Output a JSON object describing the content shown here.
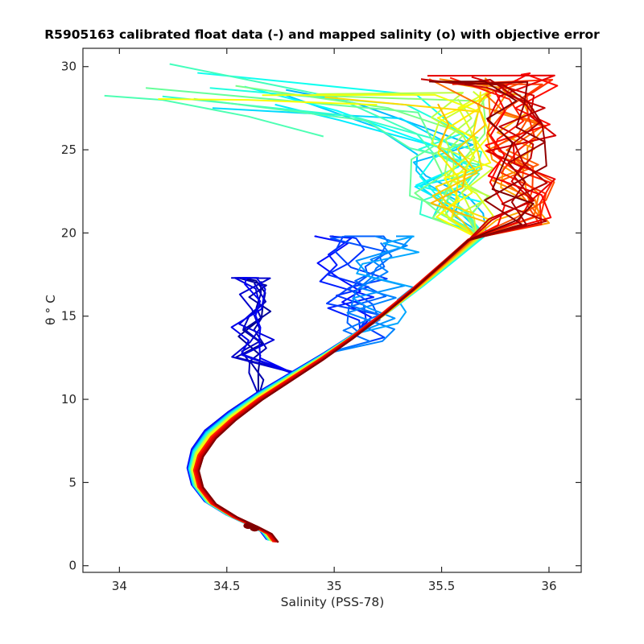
{
  "chart_data": {
    "type": "line",
    "title": "R5905163 calibrated float data (-) and mapped salinity (o) with objective error",
    "xlabel": "Salinity (PSS-78)",
    "ylabel": "θ ° C",
    "xlim": [
      33.83,
      36.15
    ],
    "ylim": [
      -0.4,
      31.1
    ],
    "xticks": [
      34,
      34.5,
      35,
      35.5,
      36
    ],
    "xtick_labels": [
      "34",
      "34.5",
      "35",
      "35.5",
      "36"
    ],
    "yticks": [
      0,
      5,
      10,
      15,
      20,
      25,
      30
    ],
    "ytick_labels": [
      "0",
      "5",
      "10",
      "15",
      "20",
      "25",
      "30"
    ],
    "grid": false,
    "legend": "none",
    "colormap": "jet (early profiles blue → late profiles dark red)",
    "colors": {
      "jet": [
        "#00008f",
        "#0000ff",
        "#0080ff",
        "#00ffff",
        "#80ff80",
        "#ffff00",
        "#ff8000",
        "#ff0000",
        "#800000"
      ],
      "axes": "#262626"
    },
    "profile_count": 60,
    "mean_deep_profile": {
      "salinity": [
        34.71,
        34.68,
        34.62,
        34.52,
        34.42,
        34.36,
        34.34,
        34.36,
        34.42,
        34.52,
        34.65,
        34.8,
        34.95,
        35.1,
        35.25,
        35.4,
        35.55,
        35.68
      ],
      "theta": [
        1.5,
        2.0,
        2.4,
        3.0,
        3.8,
        4.8,
        5.8,
        6.8,
        7.9,
        9.0,
        10.2,
        11.4,
        12.6,
        13.9,
        15.3,
        16.8,
        18.4,
        19.8
      ]
    },
    "series": [
      {
        "salinity": [
          34.7,
          34.67,
          34.62,
          34.53,
          34.42,
          34.36,
          34.34,
          34.37,
          34.43,
          34.52,
          34.63,
          34.73
        ],
        "theta": [
          1.5,
          1.9,
          2.4,
          3.0,
          3.8,
          4.8,
          5.8,
          6.8,
          7.9,
          9.0,
          9.7,
          10.3
        ],
        "branch": "deep water and surface-layer features of the earliest profiles, salinity 34.5-34.7 at theta 10-17 °C"
      },
      {
        "salinity": [
          34.71,
          34.68,
          34.63,
          34.55,
          34.45,
          34.37,
          34.33,
          34.34,
          34.39,
          34.48,
          34.6,
          34.76,
          34.95,
          35.14
        ],
        "theta": [
          1.5,
          2.0,
          2.5,
          3.1,
          3.9,
          4.9,
          5.9,
          6.9,
          8.0,
          9.1,
          10.3,
          11.5,
          12.8,
          14.2
        ],
        "branch": "fresh near-surface layer 34.85-35.2 at theta 12-20 °C"
      },
      {
        "salinity": [
          34.72,
          34.69,
          34.64,
          34.56,
          34.46,
          34.38,
          34.34,
          34.35,
          34.4,
          34.5,
          34.63,
          34.79,
          34.98,
          35.2,
          35.42,
          35.6,
          35.68
        ],
        "theta": [
          1.5,
          2.0,
          2.5,
          3.1,
          3.9,
          4.9,
          5.9,
          6.9,
          8.0,
          9.1,
          10.3,
          11.5,
          12.8,
          14.4,
          16.2,
          18.2,
          19.5
        ],
        "branch": "surface salinity minimum near 34.0-35.0 at theta 24-28 °C"
      },
      {
        "salinity": [
          34.71,
          34.67,
          34.61,
          34.52,
          34.42,
          34.35,
          34.32,
          34.34,
          34.4,
          34.51,
          34.65,
          34.82,
          35.0,
          35.2,
          35.4,
          35.6,
          35.7
        ],
        "theta": [
          1.5,
          2.0,
          2.4,
          3.0,
          3.8,
          4.8,
          5.8,
          6.8,
          7.9,
          9.0,
          10.1,
          11.3,
          12.5,
          13.8,
          15.3,
          17.0,
          18.5
        ],
        "branch": "surface layer 35.4-35.7 at theta 21-28 °C"
      },
      {
        "salinity": [
          34.7,
          34.66,
          34.6,
          34.5,
          34.4,
          34.34,
          34.33,
          34.37,
          34.45,
          34.57,
          34.72,
          34.9,
          35.1,
          35.3,
          35.5,
          35.7,
          35.85,
          35.95
        ],
        "theta": [
          1.6,
          2.1,
          2.5,
          3.1,
          3.9,
          4.9,
          5.9,
          6.9,
          8.0,
          9.1,
          10.3,
          11.6,
          13.0,
          14.5,
          16.1,
          17.9,
          19.6,
          20.6
        ],
        "branch": "latest profiles, saline surface layer 35.6-36.05 at theta 20-29.5 °C"
      }
    ]
  }
}
